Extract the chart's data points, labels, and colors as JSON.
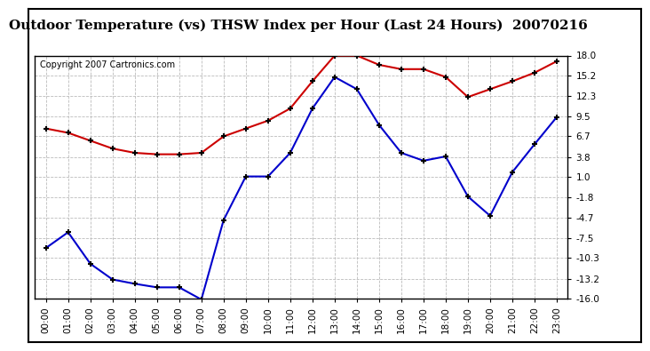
{
  "title": "Outdoor Temperature (vs) THSW Index per Hour (Last 24 Hours)  20070216",
  "copyright": "Copyright 2007 Cartronics.com",
  "x_labels": [
    "00:00",
    "01:00",
    "02:00",
    "03:00",
    "04:00",
    "05:00",
    "06:00",
    "07:00",
    "08:00",
    "09:00",
    "10:00",
    "11:00",
    "12:00",
    "13:00",
    "14:00",
    "15:00",
    "16:00",
    "17:00",
    "18:00",
    "19:00",
    "20:00",
    "21:00",
    "22:00",
    "23:00"
  ],
  "red_data": [
    7.8,
    7.2,
    6.1,
    5.0,
    4.4,
    4.2,
    4.2,
    4.4,
    6.7,
    7.8,
    8.9,
    10.6,
    14.4,
    18.0,
    18.0,
    16.7,
    16.1,
    16.1,
    15.0,
    12.2,
    13.3,
    14.4,
    15.6,
    17.2
  ],
  "blue_data": [
    -8.9,
    -6.7,
    -11.1,
    -13.3,
    -13.9,
    -14.4,
    -14.4,
    -16.1,
    -5.0,
    1.1,
    1.1,
    4.4,
    10.6,
    15.0,
    13.3,
    8.3,
    4.4,
    3.3,
    3.9,
    -1.7,
    -4.4,
    1.7,
    5.6,
    9.4
  ],
  "y_ticks": [
    18.0,
    15.2,
    12.3,
    9.5,
    6.7,
    3.8,
    1.0,
    -1.8,
    -4.7,
    -7.5,
    -10.3,
    -13.2,
    -16.0
  ],
  "ylim": [
    -16.0,
    18.0
  ],
  "red_color": "#cc0000",
  "blue_color": "#0000cc",
  "bg_color": "#ffffff",
  "plot_bg_color": "#ffffff",
  "grid_color": "#bbbbbb",
  "title_fontsize": 11,
  "copyright_fontsize": 7,
  "tick_fontsize": 7.5
}
